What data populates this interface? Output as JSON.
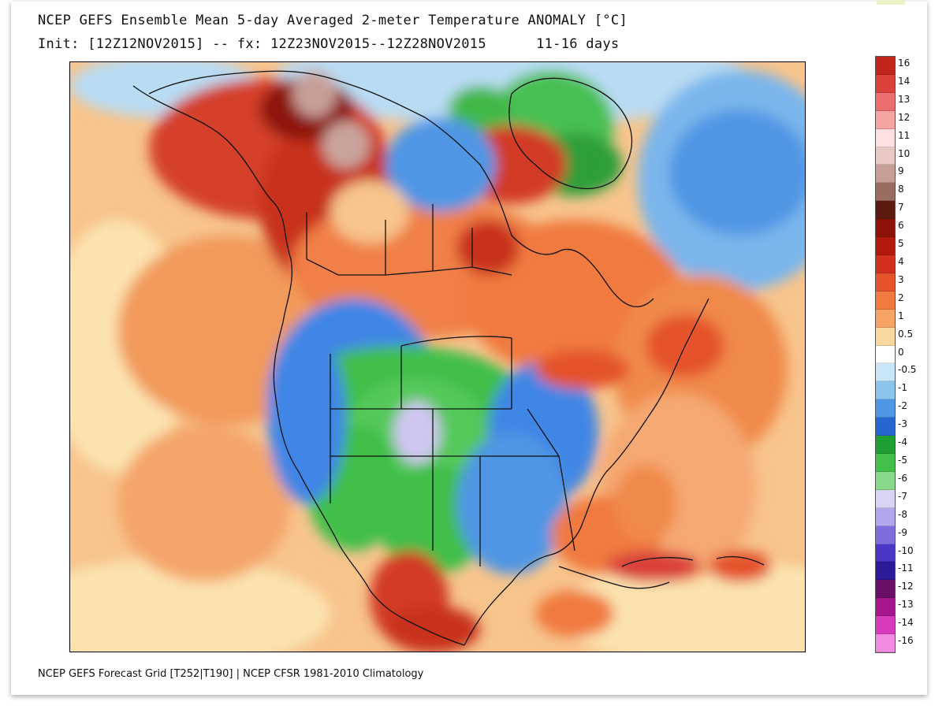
{
  "header": {
    "title": "NCEP GEFS Ensemble Mean 5-day Averaged 2-meter Temperature ANOMALY [°C]",
    "subtitle": "Init: [12Z12NOV2015] -- fx: 12Z23NOV2015--12Z28NOV2015      11-16 days"
  },
  "footer": {
    "credit": "NCEP GEFS Forecast Grid [T252|T190] | NCEP CFSR 1981-2010 Climatology"
  },
  "map": {
    "region": "North America",
    "field": "2-meter temperature anomaly",
    "colors": {
      "ocean_warm": "#f7c48c",
      "cold_blue": "#3f86e6",
      "cold_green": "#3fbf4a",
      "warm_red": "#c8321e",
      "light_blue": "#b9dcf3",
      "lavender": "#cfc6f0"
    }
  },
  "legend": {
    "units": "°C",
    "entries": [
      {
        "label": "16",
        "color": "#c1251b"
      },
      {
        "label": "14",
        "color": "#d9413a"
      },
      {
        "label": "13",
        "color": "#ea6e6e"
      },
      {
        "label": "12",
        "color": "#f6a3a3"
      },
      {
        "label": "11",
        "color": "#fde1e1"
      },
      {
        "label": "10",
        "color": "#e7c9c2"
      },
      {
        "label": "9",
        "color": "#c79f97"
      },
      {
        "label": "8",
        "color": "#9a6d63"
      },
      {
        "label": "7",
        "color": "#5c1a10"
      },
      {
        "label": "6",
        "color": "#8d1207"
      },
      {
        "label": "5",
        "color": "#b21a0e"
      },
      {
        "label": "4",
        "color": "#d1301d"
      },
      {
        "label": "3",
        "color": "#e4532c"
      },
      {
        "label": "2",
        "color": "#f07a3f"
      },
      {
        "label": "1",
        "color": "#f6a466"
      },
      {
        "label": "0.5",
        "color": "#fad79c"
      },
      {
        "label": "0",
        "color": "#ffffff"
      },
      {
        "label": "-0.5",
        "color": "#c8e6f8"
      },
      {
        "label": "-1",
        "color": "#8cc4ee"
      },
      {
        "label": "-2",
        "color": "#4f96e4"
      },
      {
        "label": "-3",
        "color": "#2566d1"
      },
      {
        "label": "-4",
        "color": "#1e9e33"
      },
      {
        "label": "-5",
        "color": "#43c04a"
      },
      {
        "label": "-6",
        "color": "#8ad88a"
      },
      {
        "label": "-7",
        "color": "#d9d4f4"
      },
      {
        "label": "-8",
        "color": "#b3a6ec"
      },
      {
        "label": "-9",
        "color": "#7e6ddc"
      },
      {
        "label": "-10",
        "color": "#4a37c7"
      },
      {
        "label": "-11",
        "color": "#2c1b99"
      },
      {
        "label": "-12",
        "color": "#6c0f66"
      },
      {
        "label": "-13",
        "color": "#a5168e"
      },
      {
        "label": "-14",
        "color": "#d83bbd"
      },
      {
        "label": "-16",
        "color": "#f28ce1"
      }
    ]
  }
}
